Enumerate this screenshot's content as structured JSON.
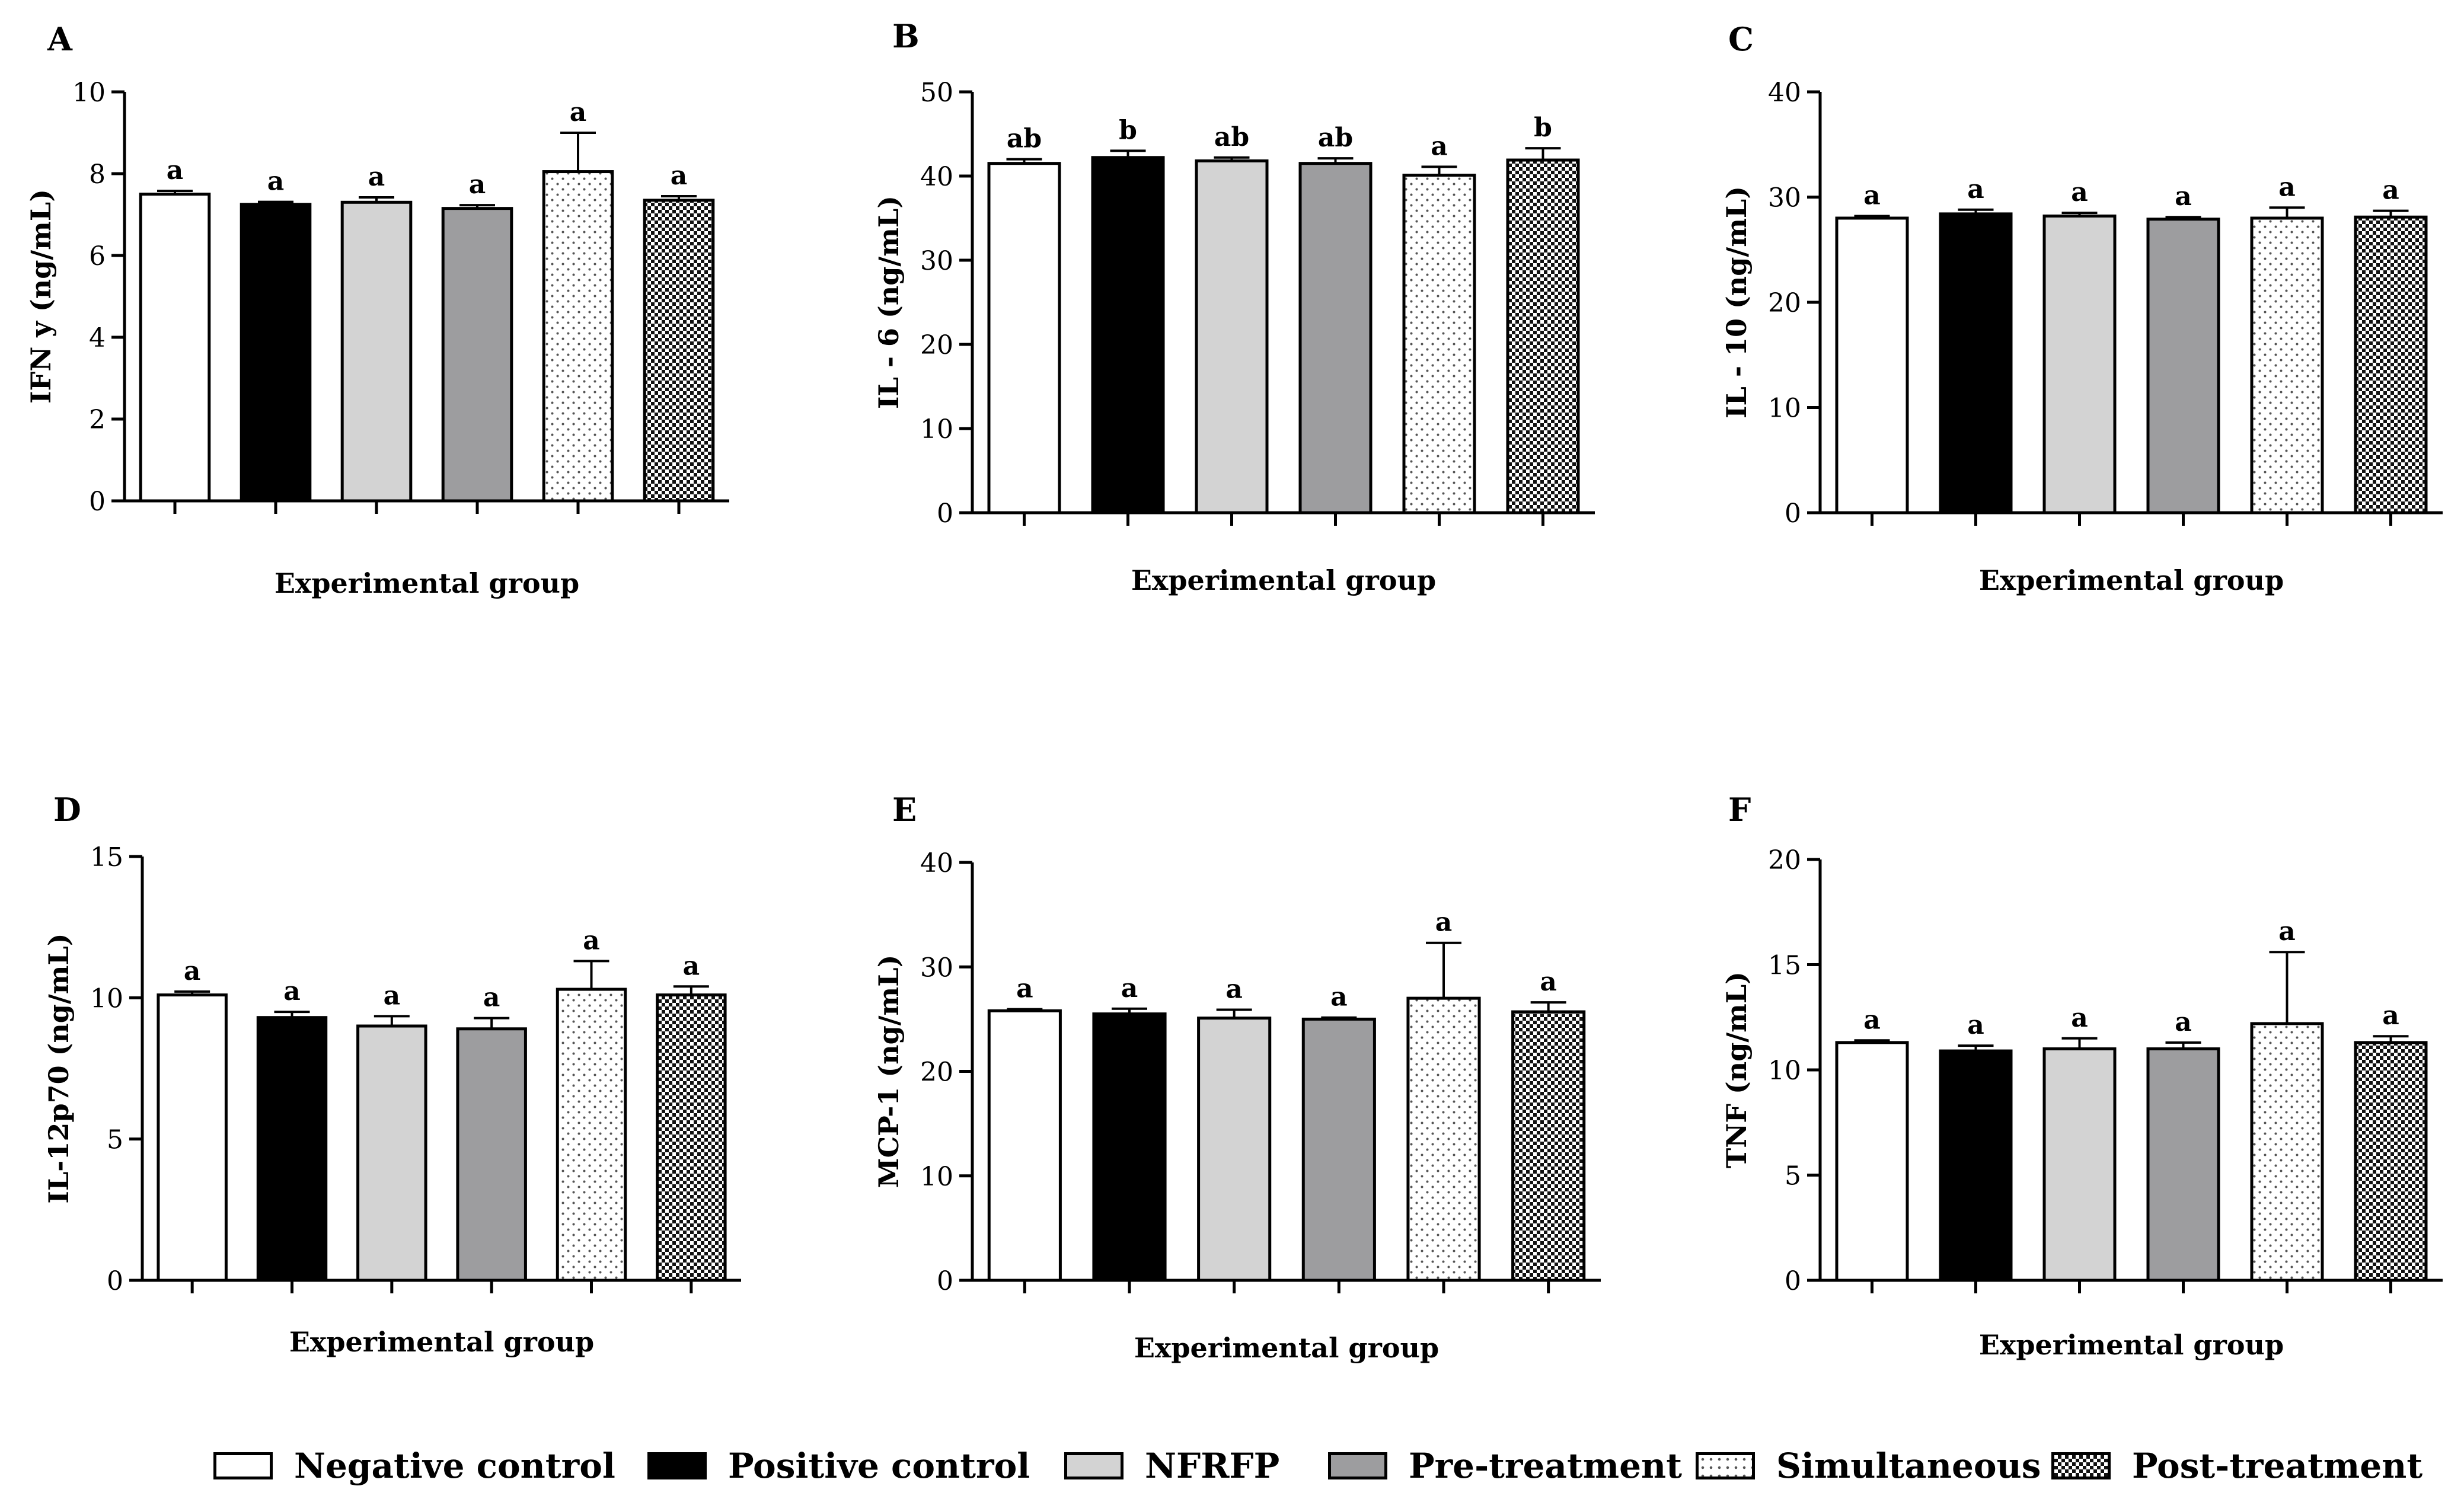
{
  "colors": {
    "negative_control": "#ffffff",
    "positive_control": "#000000",
    "nfrfp": "#d3d3d3",
    "pre_treatment": "#9d9d9f",
    "axis": "#000000"
  },
  "legend": [
    {
      "label": "Negative control",
      "fill": "white"
    },
    {
      "label": "Positive control",
      "fill": "black"
    },
    {
      "label": "NFRFP",
      "fill": "lightgray"
    },
    {
      "label": "Pre-treatment",
      "fill": "gray"
    },
    {
      "label": "Simultaneous",
      "fill": "dots"
    },
    {
      "label": "Post-treatment",
      "fill": "checker"
    }
  ],
  "chart_data": [
    {
      "panel": "A",
      "type": "bar",
      "ylabel": "IFN y (ng/mL)",
      "xlabel": "Experimental group",
      "ylim": [
        0,
        10
      ],
      "yticks": [
        0,
        2,
        4,
        6,
        8,
        10
      ],
      "categories": [
        "Negative control",
        "Positive control",
        "NFRFP",
        "Pre-treatment",
        "Simultaneous",
        "Post-treatment"
      ],
      "values": [
        7.5,
        7.25,
        7.3,
        7.15,
        8.05,
        7.35
      ],
      "errors": [
        0.08,
        0.06,
        0.12,
        0.08,
        0.95,
        0.1
      ],
      "letters": [
        "a",
        "a",
        "a",
        "a",
        "a",
        "a"
      ]
    },
    {
      "panel": "B",
      "type": "bar",
      "ylabel": "IL - 6 (ng/mL)",
      "xlabel": "Experimental group",
      "ylim": [
        0,
        50
      ],
      "yticks": [
        0,
        10,
        20,
        30,
        40,
        50
      ],
      "categories": [
        "Negative control",
        "Positive control",
        "NFRFP",
        "Pre-treatment",
        "Simultaneous",
        "Post-treatment"
      ],
      "values": [
        41.5,
        42.2,
        41.8,
        41.5,
        40.1,
        41.9
      ],
      "errors": [
        0.5,
        0.8,
        0.4,
        0.6,
        1.0,
        1.4
      ],
      "letters": [
        "ab",
        "b",
        "ab",
        "ab",
        "a",
        "b"
      ]
    },
    {
      "panel": "C",
      "type": "bar",
      "ylabel": "IL - 10 (ng/mL)",
      "xlabel": "Experimental group",
      "ylim": [
        0,
        40
      ],
      "yticks": [
        0,
        10,
        20,
        30,
        40
      ],
      "categories": [
        "Negative control",
        "Positive control",
        "NFRFP",
        "Pre-treatment",
        "Simultaneous",
        "Post-treatment"
      ],
      "values": [
        28.0,
        28.4,
        28.2,
        27.9,
        28.0,
        28.1
      ],
      "errors": [
        0.2,
        0.4,
        0.3,
        0.2,
        1.0,
        0.6
      ],
      "letters": [
        "a",
        "a",
        "a",
        "a",
        "a",
        "a"
      ]
    },
    {
      "panel": "D",
      "type": "bar",
      "ylabel": "IL-12p70 (ng/mL)",
      "xlabel": "Experimental group",
      "ylim": [
        0,
        15
      ],
      "yticks": [
        0,
        5,
        10,
        15
      ],
      "categories": [
        "Negative control",
        "Positive control",
        "NFRFP",
        "Pre-treatment",
        "Simultaneous",
        "Post-treatment"
      ],
      "values": [
        10.1,
        9.3,
        9.0,
        8.9,
        10.3,
        10.1
      ],
      "errors": [
        0.12,
        0.2,
        0.35,
        0.38,
        1.0,
        0.3
      ],
      "letters": [
        "a",
        "a",
        "a",
        "a",
        "a",
        "a"
      ]
    },
    {
      "panel": "E",
      "type": "bar",
      "ylabel": "MCP-1 (ng/mL)",
      "xlabel": "Experimental group",
      "ylim": [
        0,
        40
      ],
      "yticks": [
        0,
        10,
        20,
        30,
        40
      ],
      "categories": [
        "Negative control",
        "Positive control",
        "NFRFP",
        "Pre-treatment",
        "Simultaneous",
        "Post-treatment"
      ],
      "values": [
        25.8,
        25.5,
        25.1,
        25.0,
        27.0,
        25.7
      ],
      "errors": [
        0.15,
        0.5,
        0.8,
        0.15,
        5.3,
        0.9
      ],
      "letters": [
        "a",
        "a",
        "a",
        "a",
        "a",
        "a"
      ]
    },
    {
      "panel": "F",
      "type": "bar",
      "ylabel": "TNF (ng/mL)",
      "xlabel": "Experimental group",
      "ylim": [
        0,
        20
      ],
      "yticks": [
        0,
        5,
        10,
        15,
        20
      ],
      "categories": [
        "Negative control",
        "Positive control",
        "NFRFP",
        "Pre-treatment",
        "Simultaneous",
        "Post-treatment"
      ],
      "values": [
        11.3,
        10.9,
        11.0,
        11.0,
        12.2,
        11.3
      ],
      "errors": [
        0.1,
        0.25,
        0.5,
        0.3,
        3.4,
        0.3
      ],
      "letters": [
        "a",
        "a",
        "a",
        "a",
        "a",
        "a"
      ]
    }
  ]
}
